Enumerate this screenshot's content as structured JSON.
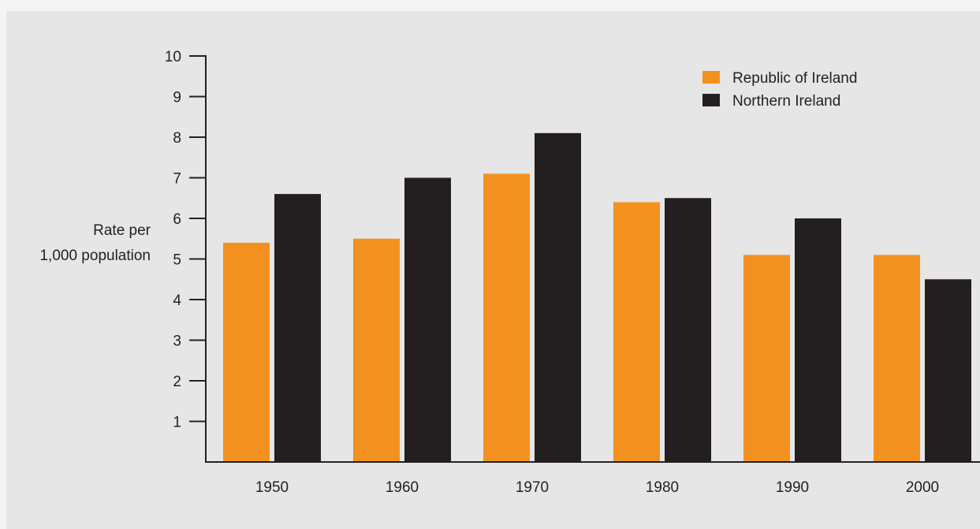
{
  "chart_data": {
    "type": "bar",
    "title": "",
    "xlabel": "",
    "ylabel": [
      "Rate per",
      "1,000 population"
    ],
    "categories": [
      "1950",
      "1960",
      "1970",
      "1980",
      "1990",
      "2000"
    ],
    "series": [
      {
        "name": "Republic of Ireland",
        "color": "#f39120",
        "values": [
          5.4,
          5.5,
          7.1,
          6.4,
          5.1,
          5.1
        ]
      },
      {
        "name": "Northern Ireland",
        "color": "#231f20",
        "values": [
          6.6,
          7.0,
          8.1,
          6.5,
          6.0,
          4.5
        ]
      }
    ],
    "ylim": [
      0,
      10
    ],
    "yticks": [
      "1",
      "2",
      "3",
      "4",
      "5",
      "6",
      "7",
      "8",
      "9",
      "10"
    ],
    "grid": false,
    "legend_position": "top-right"
  },
  "colors": {
    "page_background": "#f4f4f4",
    "panel_background": "#e6e6e6",
    "axis": "#222222"
  }
}
